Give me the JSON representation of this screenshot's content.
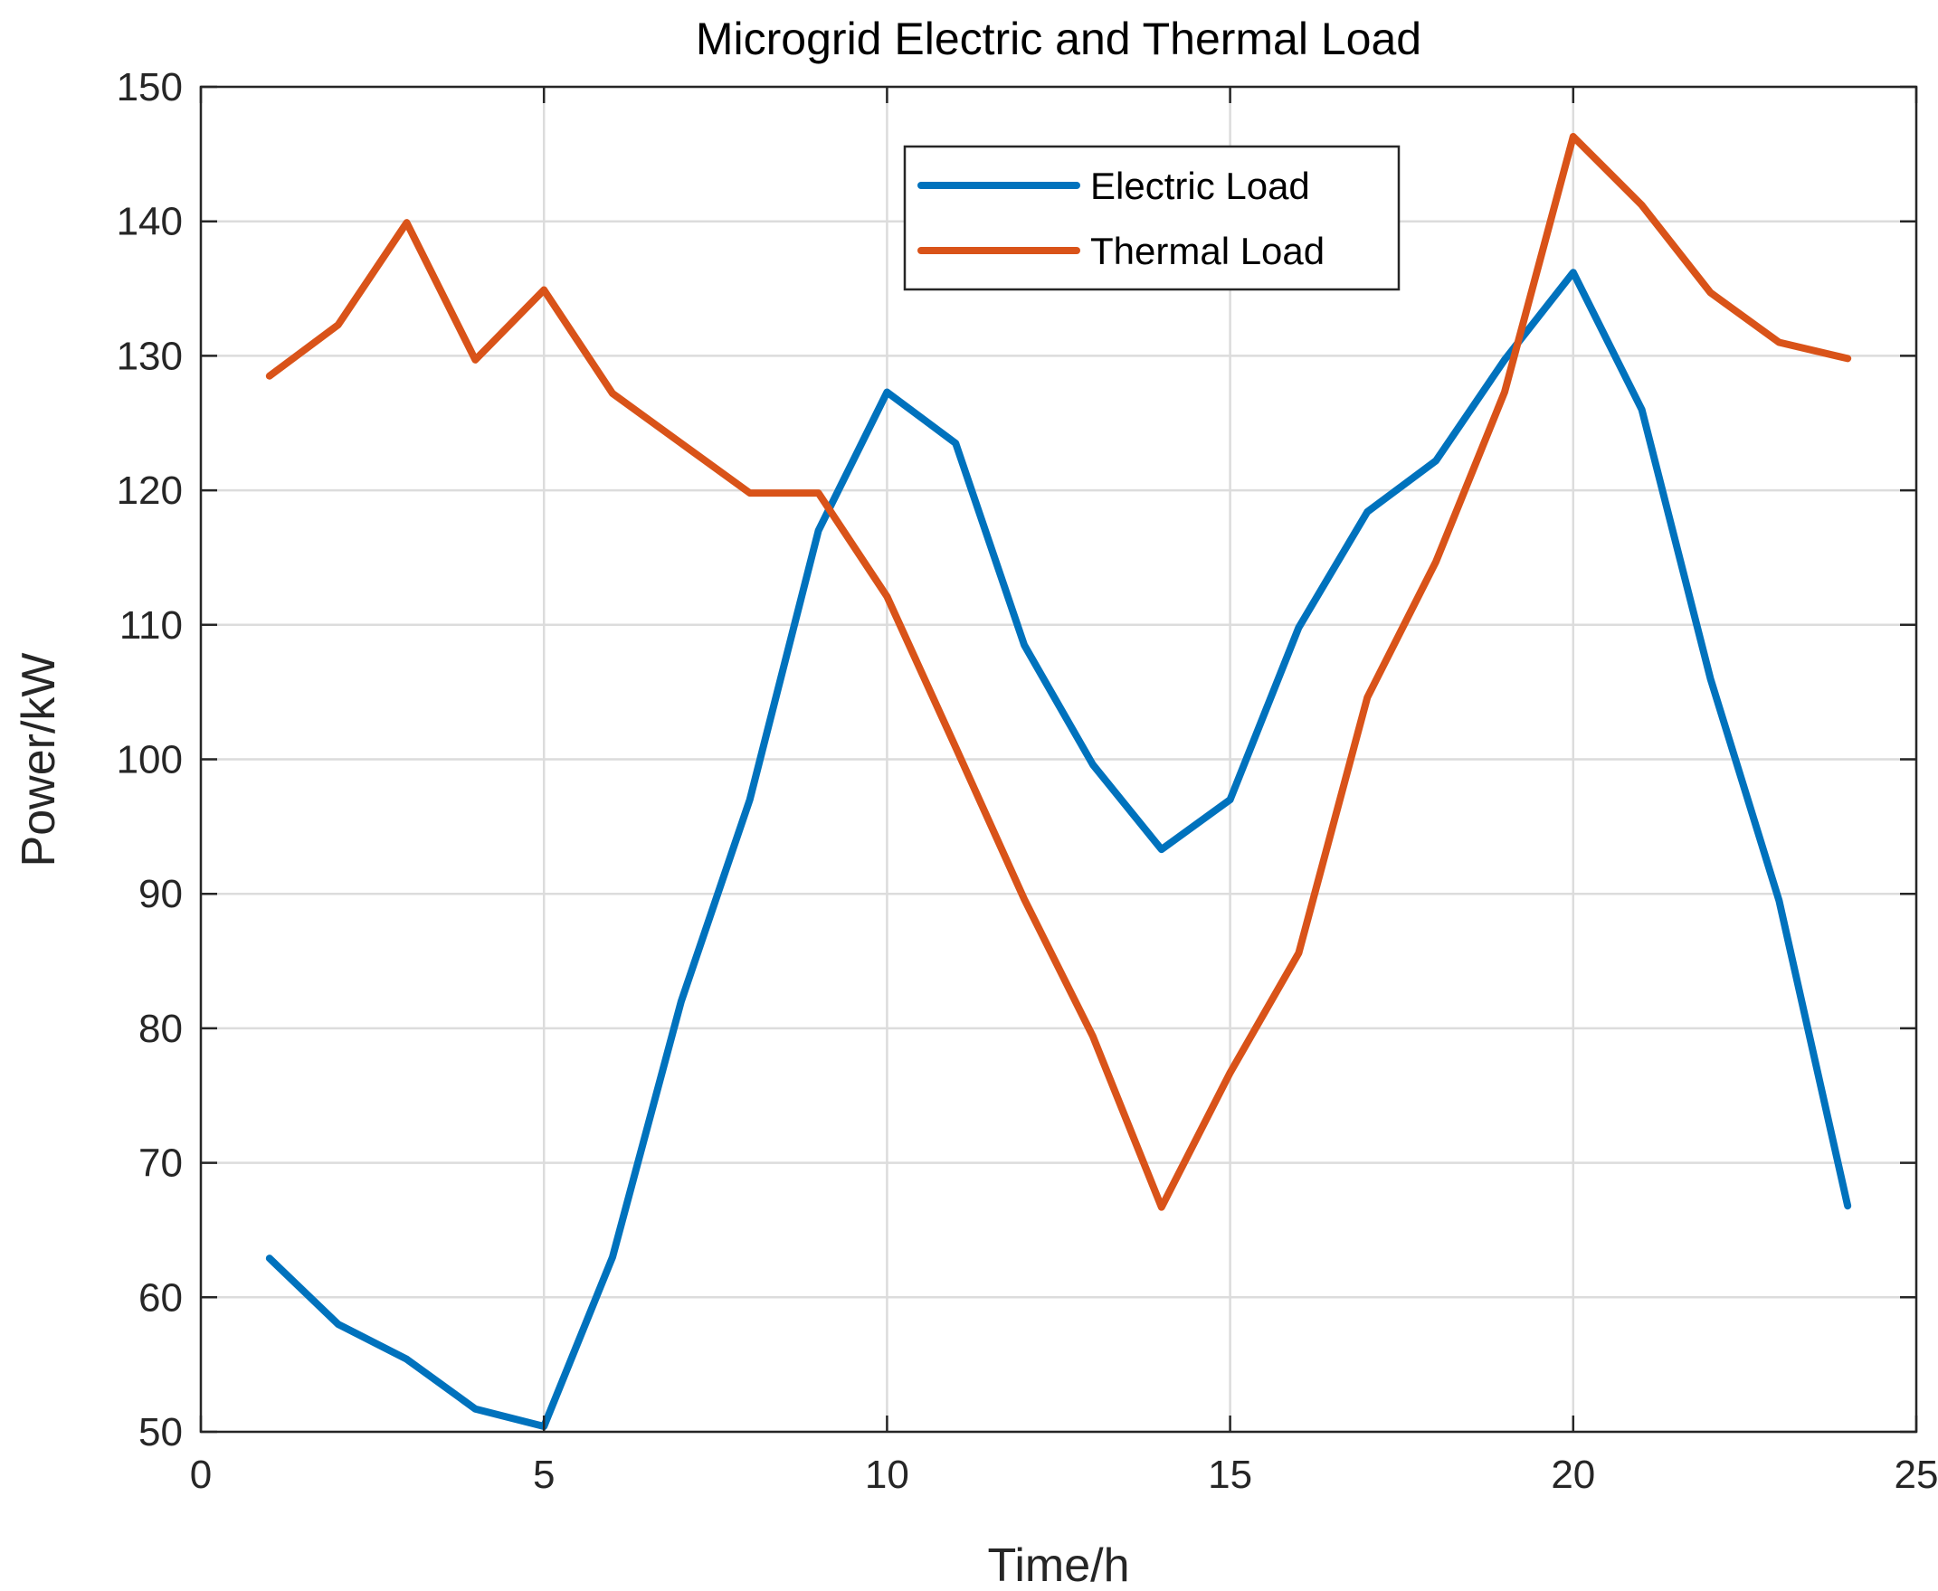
{
  "chart_data": {
    "type": "line",
    "title": "Microgrid Electric and Thermal Load",
    "xlabel": "Time/h",
    "ylabel": "Power/kW",
    "xlim": [
      0,
      25
    ],
    "ylim": [
      50,
      150
    ],
    "xticks": [
      0,
      5,
      10,
      15,
      20,
      25
    ],
    "yticks": [
      50,
      60,
      70,
      80,
      90,
      100,
      110,
      120,
      130,
      140,
      150
    ],
    "grid": true,
    "legend_position": "top-right",
    "x": [
      1,
      2,
      3,
      4,
      5,
      6,
      7,
      8,
      9,
      10,
      11,
      12,
      13,
      14,
      15,
      16,
      17,
      18,
      19,
      20,
      21,
      22,
      23,
      24
    ],
    "series": [
      {
        "name": "Electric Load",
        "color": "#0072BD",
        "values": [
          62.9,
          58.0,
          55.4,
          51.7,
          50.4,
          63.0,
          82.0,
          97.0,
          117.0,
          127.3,
          123.5,
          108.5,
          99.6,
          93.3,
          97.0,
          109.8,
          118.4,
          122.2,
          129.7,
          136.2,
          126.0,
          106.0,
          89.5,
          66.8
        ]
      },
      {
        "name": "Thermal Load",
        "color": "#D95319",
        "values": [
          128.5,
          132.3,
          139.9,
          129.7,
          134.9,
          127.2,
          123.5,
          119.8,
          119.8,
          112.1,
          100.9,
          89.6,
          79.4,
          66.7,
          76.7,
          85.6,
          104.6,
          114.7,
          127.3,
          146.3,
          141.2,
          134.7,
          131.0,
          129.8
        ]
      }
    ]
  }
}
